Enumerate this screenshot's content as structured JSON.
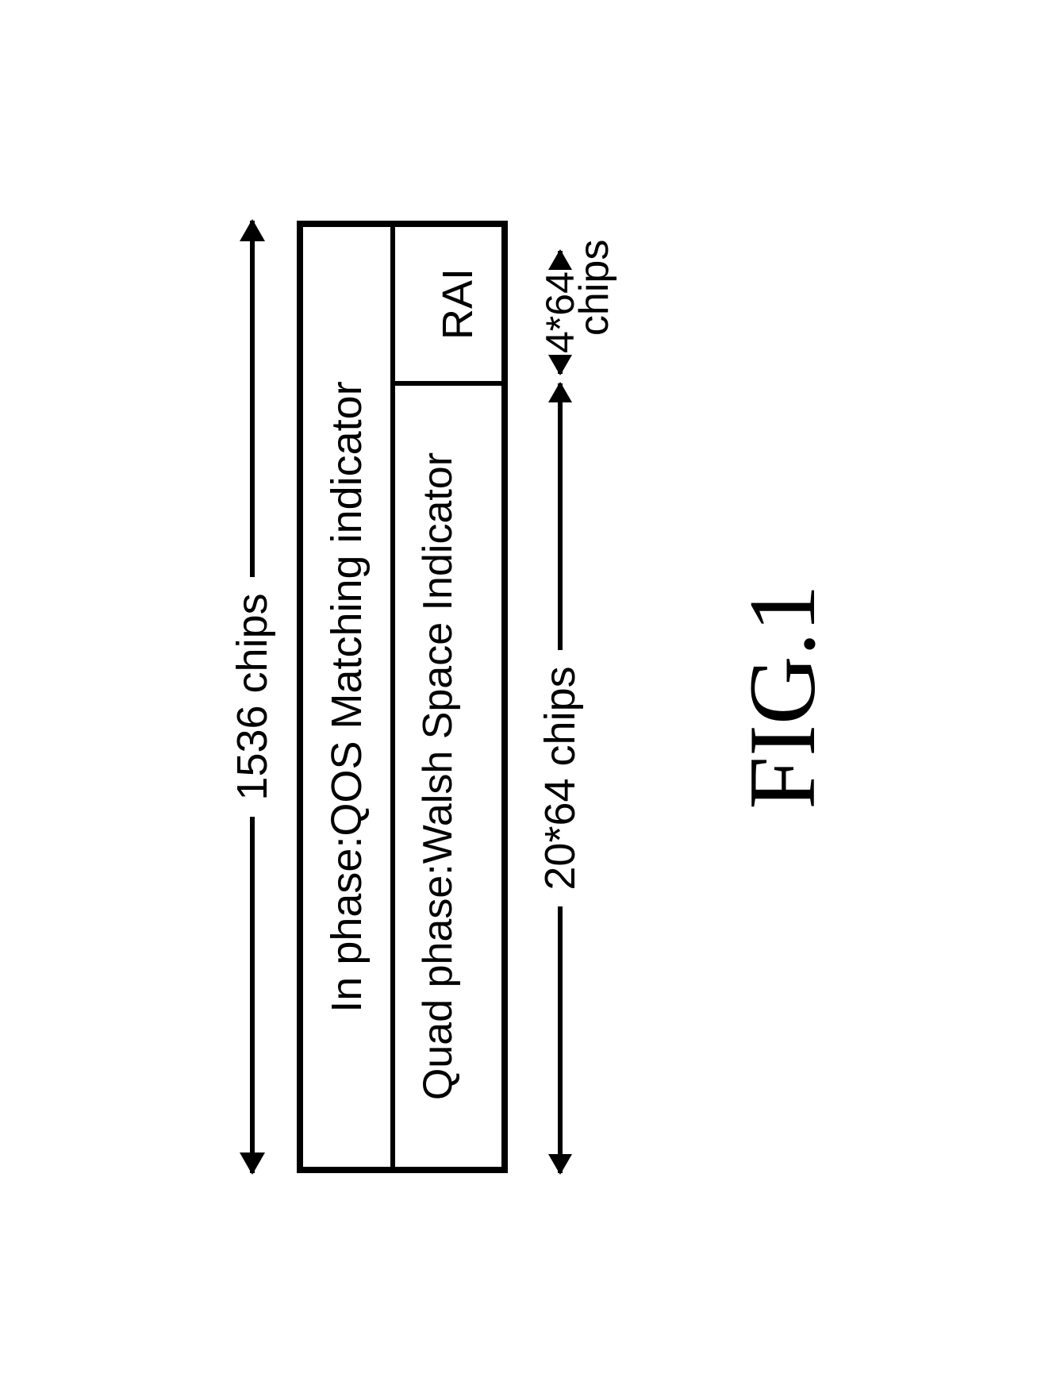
{
  "diagram": {
    "top_arrow_label": "1536 chips",
    "row1_text": "In phase:QOS Matching indicator",
    "row2_cell1": "Quad phase:Walsh Space Indicator",
    "row2_cell2": "RAI",
    "bottom_left_label": "20*64 chips",
    "bottom_right_label": "4*64",
    "bottom_right_sublabel": "chips",
    "figure_label": "FIG.1",
    "colors": {
      "line": "#000000",
      "text": "#000000",
      "background": "#ffffff"
    },
    "dimensions": {
      "total_width": 1200,
      "wsi_width": 990,
      "border_width": 8,
      "inner_border": 6
    },
    "fonts": {
      "label_size": 54,
      "fig_size": 120
    }
  }
}
